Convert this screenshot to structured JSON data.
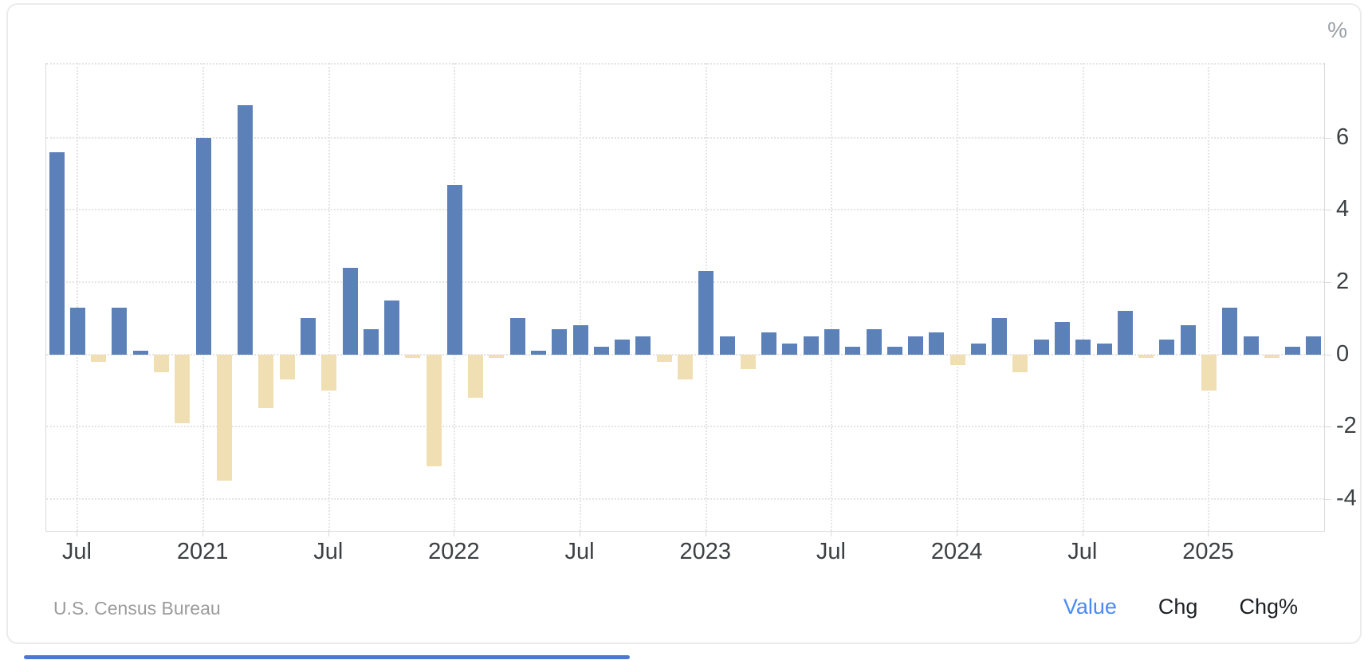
{
  "source": "U.S. Census Bureau",
  "legend": {
    "items": [
      {
        "label": "Value",
        "active": true
      },
      {
        "label": "Chg",
        "active": false
      },
      {
        "label": "Chg%",
        "active": false
      }
    ]
  },
  "colors": {
    "positive_bar": "#5b81b8",
    "negative_bar": "#f0dfb2",
    "legend_active": "#4a89f3",
    "legend_inactive": "#1c2024",
    "grid": "#e4e4e4",
    "axis": "#d9d9d9",
    "axis_text": "#3c4043",
    "muted_text": "#9b9b9b",
    "accent_line": "#4b79cf"
  },
  "chart_data": {
    "type": "bar",
    "title": "",
    "xlabel": "",
    "ylabel": "%",
    "grid": true,
    "legend_position": "none",
    "ylim": [
      -4.89,
      8.07
    ],
    "yticks": [
      6,
      4,
      2,
      0,
      -2,
      -4
    ],
    "x": [
      "2020-06",
      "2020-07",
      "2020-08",
      "2020-09",
      "2020-10",
      "2020-11",
      "2020-12",
      "2021-01",
      "2021-02",
      "2021-03",
      "2021-04",
      "2021-05",
      "2021-06",
      "2021-07",
      "2021-08",
      "2021-09",
      "2021-10",
      "2021-11",
      "2021-12",
      "2022-01",
      "2022-02",
      "2022-03",
      "2022-04",
      "2022-05",
      "2022-06",
      "2022-07",
      "2022-08",
      "2022-09",
      "2022-10",
      "2022-11",
      "2022-12",
      "2023-01",
      "2023-02",
      "2023-03",
      "2023-04",
      "2023-05",
      "2023-06",
      "2023-07",
      "2023-08",
      "2023-09",
      "2023-10",
      "2023-11",
      "2023-12",
      "2024-01",
      "2024-02",
      "2024-03",
      "2024-04",
      "2024-05",
      "2024-06",
      "2024-07",
      "2024-08",
      "2024-09",
      "2024-10",
      "2024-11",
      "2024-12",
      "2025-01",
      "2025-02",
      "2025-03",
      "2025-04",
      "2025-05",
      "2025-06"
    ],
    "values": [
      5.6,
      1.3,
      -0.2,
      1.3,
      0.1,
      -0.5,
      -1.9,
      6.0,
      -3.5,
      6.9,
      -1.5,
      -0.7,
      1.0,
      -1.0,
      2.4,
      0.7,
      1.5,
      -0.1,
      -3.1,
      4.7,
      -1.2,
      -0.1,
      1.0,
      0.1,
      0.7,
      0.8,
      0.2,
      0.4,
      0.5,
      -0.2,
      -0.7,
      2.3,
      0.5,
      -0.4,
      0.6,
      0.3,
      0.5,
      0.7,
      0.2,
      0.7,
      0.2,
      0.5,
      0.6,
      -0.3,
      0.3,
      1.0,
      -0.5,
      0.4,
      0.9,
      0.4,
      0.3,
      1.2,
      -0.1,
      0.4,
      0.8,
      -1.0,
      1.3,
      0.5,
      -0.1,
      0.2,
      0.5
    ],
    "xticks": [
      {
        "index": 1,
        "label": "Jul"
      },
      {
        "index": 7,
        "label": "2021"
      },
      {
        "index": 13,
        "label": "Jul"
      },
      {
        "index": 19,
        "label": "2022"
      },
      {
        "index": 25,
        "label": "Jul"
      },
      {
        "index": 31,
        "label": "2023"
      },
      {
        "index": 37,
        "label": "Jul"
      },
      {
        "index": 43,
        "label": "2024"
      },
      {
        "index": 49,
        "label": "Jul"
      },
      {
        "index": 55,
        "label": "2025"
      }
    ]
  }
}
